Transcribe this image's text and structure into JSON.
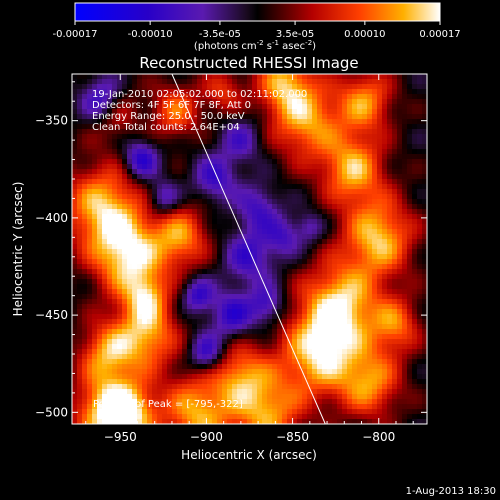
{
  "colorbar": {
    "ticks": [
      "-0.00017",
      "-0.00010",
      "-3.5e-05",
      "3.5e-05",
      "0.00010",
      "0.00017"
    ],
    "tick_values": [
      -0.00017,
      -0.0001,
      -3.5e-05,
      3.5e-05,
      0.0001,
      0.00017
    ],
    "range": [
      -0.00017,
      0.00017
    ],
    "units_text": "(photons cm",
    "units_exp1": "-2",
    "units_mid1": " s",
    "units_exp2": "-1",
    "units_mid2": " asec",
    "units_exp3": "-2",
    "units_close": ")"
  },
  "chart_data": {
    "type": "heatmap",
    "title": "Reconstructed RHESSI Image",
    "xlabel": "Heliocentric X (arcsec)",
    "ylabel": "Heliocentric Y (arcsec)",
    "xlim": [
      -978,
      -772
    ],
    "ylim": [
      -506,
      -326
    ],
    "xticks": [
      -950,
      -900,
      -850,
      -800
    ],
    "yticks": [
      -350,
      -400,
      -450,
      -500
    ],
    "limb_line": [
      [
        -920,
        -326
      ],
      [
        -831,
        -506
      ]
    ],
    "annotations": [
      "19-Jan-2010 02:05:02.000 to 02:11:02.000",
      "Detectors: 4F 5F 6F 7F 8F, Att 0",
      "Energy Range: 25.0 - 50.0 keV",
      "Clean    Total counts: 2.64E+04"
    ],
    "peak_label": "Position of Peak = [-795,-322]",
    "peak": [
      -795,
      -322
    ]
  },
  "footer": {
    "timestamp": "1-Aug-2013 18:30"
  }
}
